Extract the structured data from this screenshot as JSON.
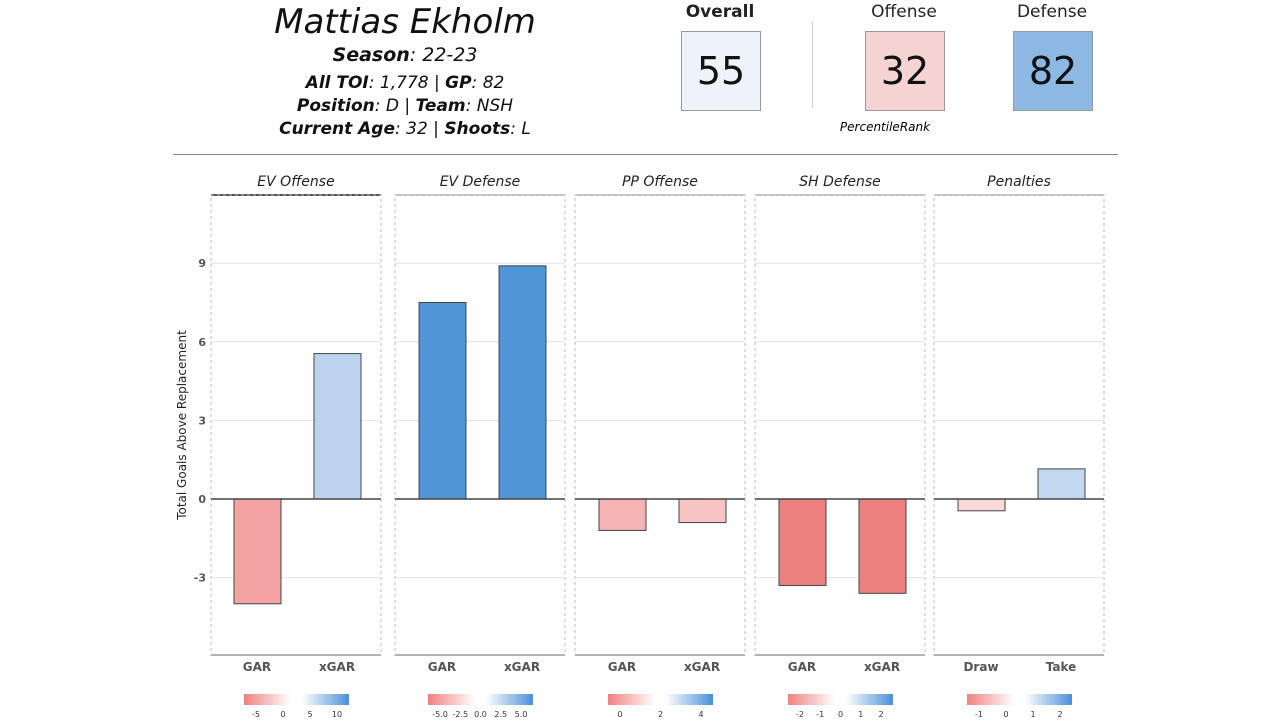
{
  "player": {
    "name": "Mattias Ekholm",
    "season_label": "Season",
    "season": "22-23",
    "toi_label": "All TOI",
    "toi": "1,778",
    "gp_label": "GP",
    "gp": "82",
    "position_label": "Position",
    "position": "D",
    "team_label": "Team",
    "team": "NSH",
    "age_label": "Current Age",
    "age": "32",
    "shoots_label": "Shoots",
    "shoots": "L"
  },
  "ratings": {
    "overall_label": "Overall",
    "overall": "55",
    "offense_label": "Offense",
    "offense": "32",
    "defense_label": "Defense",
    "defense": "82",
    "caption": "PercentileRank",
    "colors": {
      "overall": "#eef3fa",
      "offense": "#f6d3d3",
      "defense": "#8cb8e3"
    }
  },
  "chart_data": {
    "type": "bar",
    "ylabel": "Total Goals Above Replacement",
    "ylim": [
      -5,
      11.5
    ],
    "yticks": [
      -3,
      0,
      3,
      6,
      9
    ],
    "grid": true,
    "panels": [
      {
        "title": "EV Offense",
        "categories": [
          "GAR",
          "xGAR"
        ],
        "values": [
          -4.0,
          5.55
        ],
        "colors": [
          "#f4a3a3",
          "#bdd3ef"
        ],
        "legend_ticks": [
          "-5",
          "0",
          "5",
          "10"
        ]
      },
      {
        "title": "EV Defense",
        "categories": [
          "GAR",
          "xGAR"
        ],
        "values": [
          7.5,
          8.9
        ],
        "colors": [
          "#4f96d6",
          "#4f96d6"
        ],
        "legend_ticks": [
          "-5.0",
          "-2.5",
          "0.0",
          "2.5",
          "5.0"
        ]
      },
      {
        "title": "PP Offense",
        "categories": [
          "GAR",
          "xGAR"
        ],
        "values": [
          -1.2,
          -0.9
        ],
        "colors": [
          "#f6b3b3",
          "#f8c3c3"
        ],
        "legend_ticks": [
          "0",
          "2",
          "4"
        ]
      },
      {
        "title": "SH Defense",
        "categories": [
          "GAR",
          "xGAR"
        ],
        "values": [
          -3.3,
          -3.6
        ],
        "colors": [
          "#ee7f7f",
          "#ee7f7f"
        ],
        "legend_ticks": [
          "-2",
          "-1",
          "0",
          "1",
          "2"
        ]
      },
      {
        "title": "Penalties",
        "categories": [
          "Draw",
          "Take"
        ],
        "values": [
          -0.45,
          1.15
        ],
        "colors": [
          "#fbd9d9",
          "#c3d7f0"
        ],
        "legend_ticks": [
          "-1",
          "0",
          "1",
          "2"
        ]
      }
    ]
  }
}
